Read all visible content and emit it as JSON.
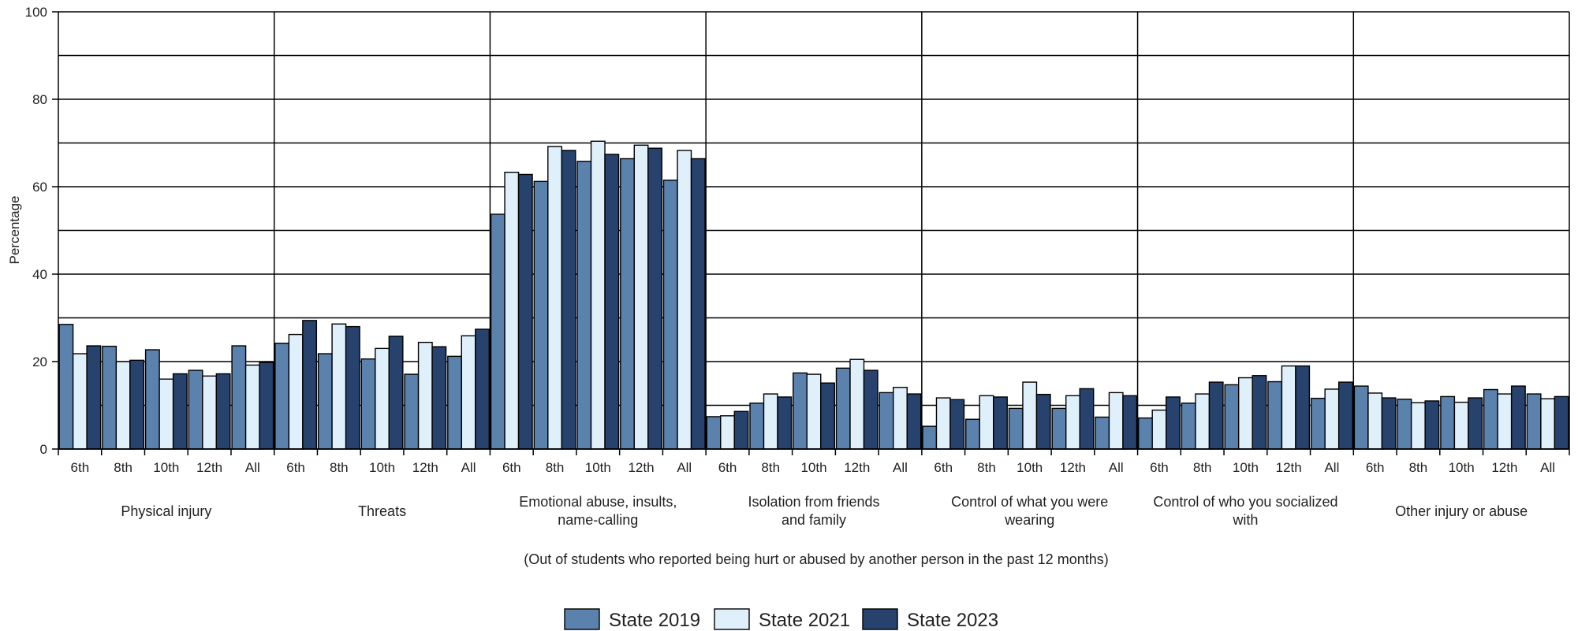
{
  "chart_data": {
    "type": "bar",
    "ylabel": "Percentage",
    "ylim": [
      0,
      100
    ],
    "yticks": [
      0,
      20,
      40,
      60,
      80,
      100
    ],
    "note": "(Out of students who reported being hurt or abused by another person in the past 12 months)",
    "subcategories": [
      "6th",
      "8th",
      "10th",
      "12th",
      "All"
    ],
    "legend_position": "bottom",
    "series": [
      {
        "name": "State 2019",
        "color": "#5b81ad"
      },
      {
        "name": "State 2021",
        "color": "#dff0fb"
      },
      {
        "name": "State 2023",
        "color": "#26426d"
      }
    ],
    "groups": [
      {
        "label": [
          "Physical injury"
        ],
        "values": [
          [
            28.5,
            21.8,
            23.6
          ],
          [
            23.5,
            20.0,
            20.3
          ],
          [
            22.7,
            16.0,
            17.2
          ],
          [
            18.0,
            16.7,
            17.2
          ],
          [
            23.6,
            19.2,
            19.8
          ]
        ]
      },
      {
        "label": [
          "Threats"
        ],
        "values": [
          [
            24.2,
            26.2,
            29.4
          ],
          [
            21.8,
            28.6,
            28.0
          ],
          [
            20.6,
            23.0,
            25.8
          ],
          [
            17.1,
            24.4,
            23.4
          ],
          [
            21.2,
            25.9,
            27.4
          ]
        ]
      },
      {
        "label": [
          "Emotional abuse, insults,",
          "name-calling"
        ],
        "values": [
          [
            53.7,
            63.3,
            62.8
          ],
          [
            61.2,
            69.2,
            68.3
          ],
          [
            65.8,
            70.4,
            67.4
          ],
          [
            66.4,
            69.5,
            68.8
          ],
          [
            61.5,
            68.3,
            66.4
          ]
        ]
      },
      {
        "label": [
          "Isolation from friends",
          "and family"
        ],
        "values": [
          [
            7.4,
            7.6,
            8.6
          ],
          [
            10.5,
            12.6,
            11.9
          ],
          [
            17.4,
            17.1,
            15.1
          ],
          [
            18.5,
            20.5,
            18.0
          ],
          [
            12.9,
            14.1,
            12.6
          ]
        ]
      },
      {
        "label": [
          "Control of what you were",
          "wearing"
        ],
        "values": [
          [
            5.2,
            11.7,
            11.3
          ],
          [
            6.8,
            12.2,
            11.9
          ],
          [
            9.3,
            15.3,
            12.5
          ],
          [
            9.3,
            12.2,
            13.8
          ],
          [
            7.3,
            12.9,
            12.2
          ]
        ]
      },
      {
        "label": [
          "Control of who you socialized",
          "with"
        ],
        "values": [
          [
            7.1,
            8.9,
            11.9
          ],
          [
            10.5,
            12.6,
            15.3
          ],
          [
            14.7,
            16.3,
            16.8
          ],
          [
            15.4,
            19.0,
            19.0
          ],
          [
            11.6,
            13.7,
            15.3
          ]
        ]
      },
      {
        "label": [
          "Other injury or abuse"
        ],
        "values": [
          [
            14.4,
            12.8,
            11.7
          ],
          [
            11.4,
            10.6,
            11.0
          ],
          [
            12.0,
            10.7,
            11.7
          ],
          [
            13.6,
            12.6,
            14.4
          ],
          [
            12.6,
            11.5,
            12.0
          ]
        ]
      }
    ]
  }
}
